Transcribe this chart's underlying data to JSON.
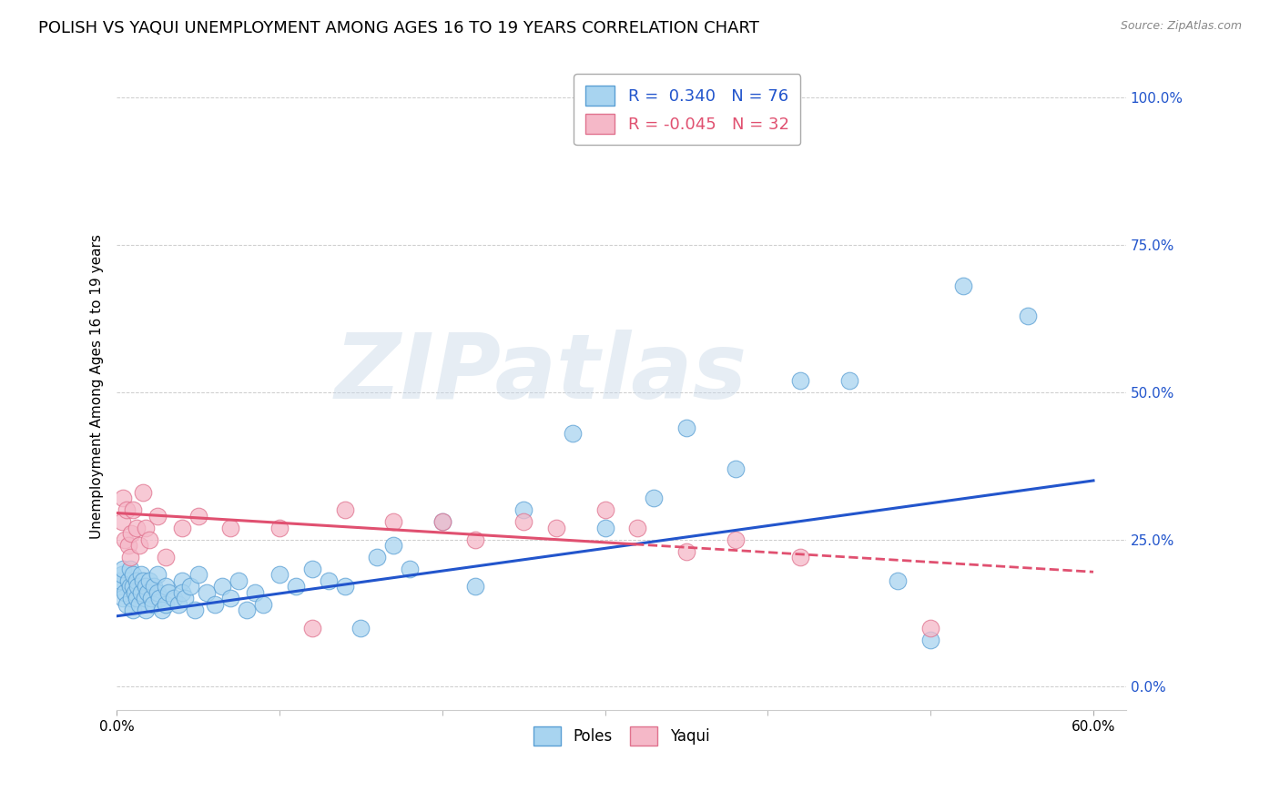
{
  "title": "POLISH VS YAQUI UNEMPLOYMENT AMONG AGES 16 TO 19 YEARS CORRELATION CHART",
  "source": "Source: ZipAtlas.com",
  "ylabel": "Unemployment Among Ages 16 to 19 years",
  "xlim": [
    0.0,
    0.62
  ],
  "ylim": [
    -0.04,
    1.06
  ],
  "yticks": [
    0.0,
    0.25,
    0.5,
    0.75,
    1.0
  ],
  "ytick_labels": [
    "0.0%",
    "25.0%",
    "50.0%",
    "75.0%",
    "100.0%"
  ],
  "poles_color": "#a8d4f0",
  "poles_edge_color": "#5a9fd4",
  "yaqui_color": "#f5b8c8",
  "yaqui_edge_color": "#e0728e",
  "poles_line_color": "#2255cc",
  "yaqui_line_color": "#e05070",
  "R_poles": 0.34,
  "N_poles": 76,
  "R_yaqui": -0.045,
  "N_yaqui": 32,
  "watermark": "ZIPatlas",
  "poles_line_x0": 0.0,
  "poles_line_y0": 0.12,
  "poles_line_x1": 0.6,
  "poles_line_y1": 0.35,
  "yaqui_line_x0": 0.0,
  "yaqui_line_y0": 0.295,
  "yaqui_line_x1": 0.6,
  "yaqui_line_y1": 0.195,
  "poles_scatter_x": [
    0.001,
    0.002,
    0.003,
    0.004,
    0.004,
    0.005,
    0.006,
    0.007,
    0.008,
    0.008,
    0.009,
    0.01,
    0.01,
    0.01,
    0.011,
    0.012,
    0.012,
    0.013,
    0.014,
    0.015,
    0.015,
    0.016,
    0.017,
    0.018,
    0.018,
    0.019,
    0.02,
    0.021,
    0.022,
    0.023,
    0.025,
    0.025,
    0.026,
    0.028,
    0.03,
    0.03,
    0.032,
    0.035,
    0.038,
    0.04,
    0.04,
    0.042,
    0.045,
    0.048,
    0.05,
    0.055,
    0.06,
    0.065,
    0.07,
    0.075,
    0.08,
    0.085,
    0.09,
    0.1,
    0.11,
    0.12,
    0.13,
    0.14,
    0.15,
    0.16,
    0.17,
    0.18,
    0.2,
    0.22,
    0.25,
    0.28,
    0.3,
    0.33,
    0.35,
    0.38,
    0.42,
    0.45,
    0.48,
    0.5,
    0.52,
    0.56
  ],
  "poles_scatter_y": [
    0.17,
    0.18,
    0.19,
    0.2,
    0.15,
    0.16,
    0.14,
    0.18,
    0.17,
    0.2,
    0.15,
    0.17,
    0.19,
    0.13,
    0.16,
    0.18,
    0.15,
    0.17,
    0.14,
    0.16,
    0.19,
    0.18,
    0.15,
    0.17,
    0.13,
    0.16,
    0.18,
    0.15,
    0.14,
    0.17,
    0.16,
    0.19,
    0.15,
    0.13,
    0.17,
    0.14,
    0.16,
    0.15,
    0.14,
    0.18,
    0.16,
    0.15,
    0.17,
    0.13,
    0.19,
    0.16,
    0.14,
    0.17,
    0.15,
    0.18,
    0.13,
    0.16,
    0.14,
    0.19,
    0.17,
    0.2,
    0.18,
    0.17,
    0.1,
    0.22,
    0.24,
    0.2,
    0.28,
    0.17,
    0.3,
    0.43,
    0.27,
    0.32,
    0.44,
    0.37,
    0.52,
    0.52,
    0.18,
    0.08,
    0.68,
    0.63
  ],
  "yaqui_scatter_x": [
    0.003,
    0.004,
    0.005,
    0.006,
    0.007,
    0.008,
    0.009,
    0.01,
    0.012,
    0.014,
    0.016,
    0.018,
    0.02,
    0.025,
    0.03,
    0.04,
    0.05,
    0.07,
    0.1,
    0.12,
    0.14,
    0.17,
    0.2,
    0.22,
    0.25,
    0.27,
    0.3,
    0.32,
    0.35,
    0.38,
    0.42,
    0.5
  ],
  "yaqui_scatter_y": [
    0.28,
    0.32,
    0.25,
    0.3,
    0.24,
    0.22,
    0.26,
    0.3,
    0.27,
    0.24,
    0.33,
    0.27,
    0.25,
    0.29,
    0.22,
    0.27,
    0.29,
    0.27,
    0.27,
    0.1,
    0.3,
    0.28,
    0.28,
    0.25,
    0.28,
    0.27,
    0.3,
    0.27,
    0.23,
    0.25,
    0.22,
    0.1
  ],
  "grid_color": "#cccccc",
  "background_color": "#ffffff",
  "title_fontsize": 13,
  "axis_label_fontsize": 11,
  "tick_fontsize": 11,
  "legend_fontsize": 13
}
